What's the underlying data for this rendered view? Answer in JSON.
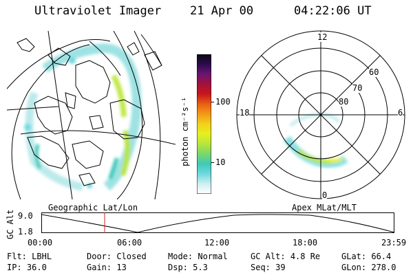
{
  "header": {
    "instrument": "Ultraviolet Imager",
    "date": "21 Apr 00",
    "time": "04:22:06 UT"
  },
  "colorbar": {
    "label": "photon cm⁻²s⁻¹",
    "ticks": [
      "100",
      "10"
    ],
    "colors": [
      "#ffffff",
      "#cfeff0",
      "#6fd9df",
      "#3fc9b9",
      "#7ad76a",
      "#b8e53d",
      "#e6f01f",
      "#f2d21a",
      "#f39a17",
      "#e96013",
      "#c8161c",
      "#a3123c",
      "#6a1570",
      "#2d0b4e",
      "#0a0a14"
    ]
  },
  "polar": {
    "clock_labels": [
      "12",
      "18",
      "6",
      "0"
    ],
    "lat_labels": [
      "60",
      "70",
      "80"
    ]
  },
  "timeline": {
    "left_label": "Geographic Lat/Lon",
    "right_label": "Apex MLat/MLT",
    "axis_label": "GC Alt",
    "y_ticks": [
      "9.0",
      "1.8"
    ],
    "x_ticks": [
      "00:00",
      "06:00",
      "12:00",
      "18:00",
      "23:59"
    ],
    "marker_color": "#cc2222"
  },
  "footer": {
    "row1": [
      {
        "key": "Flt:",
        "val": "LBHL"
      },
      {
        "key": "Door:",
        "val": "Closed"
      },
      {
        "key": "Mode:",
        "val": "Normal"
      },
      {
        "key": "GC Alt:",
        "val": "4.8 Re"
      },
      {
        "key": "GLat:",
        "val": "66.4"
      }
    ],
    "row2": [
      {
        "key": "IP:",
        "val": "36.0"
      },
      {
        "key": "Gain:",
        "val": "13"
      },
      {
        "key": "Dsp:",
        "val": "5.3"
      },
      {
        "key": "Seq:",
        "val": "39"
      },
      {
        "key": "GLon:",
        "val": "278.0"
      }
    ]
  }
}
